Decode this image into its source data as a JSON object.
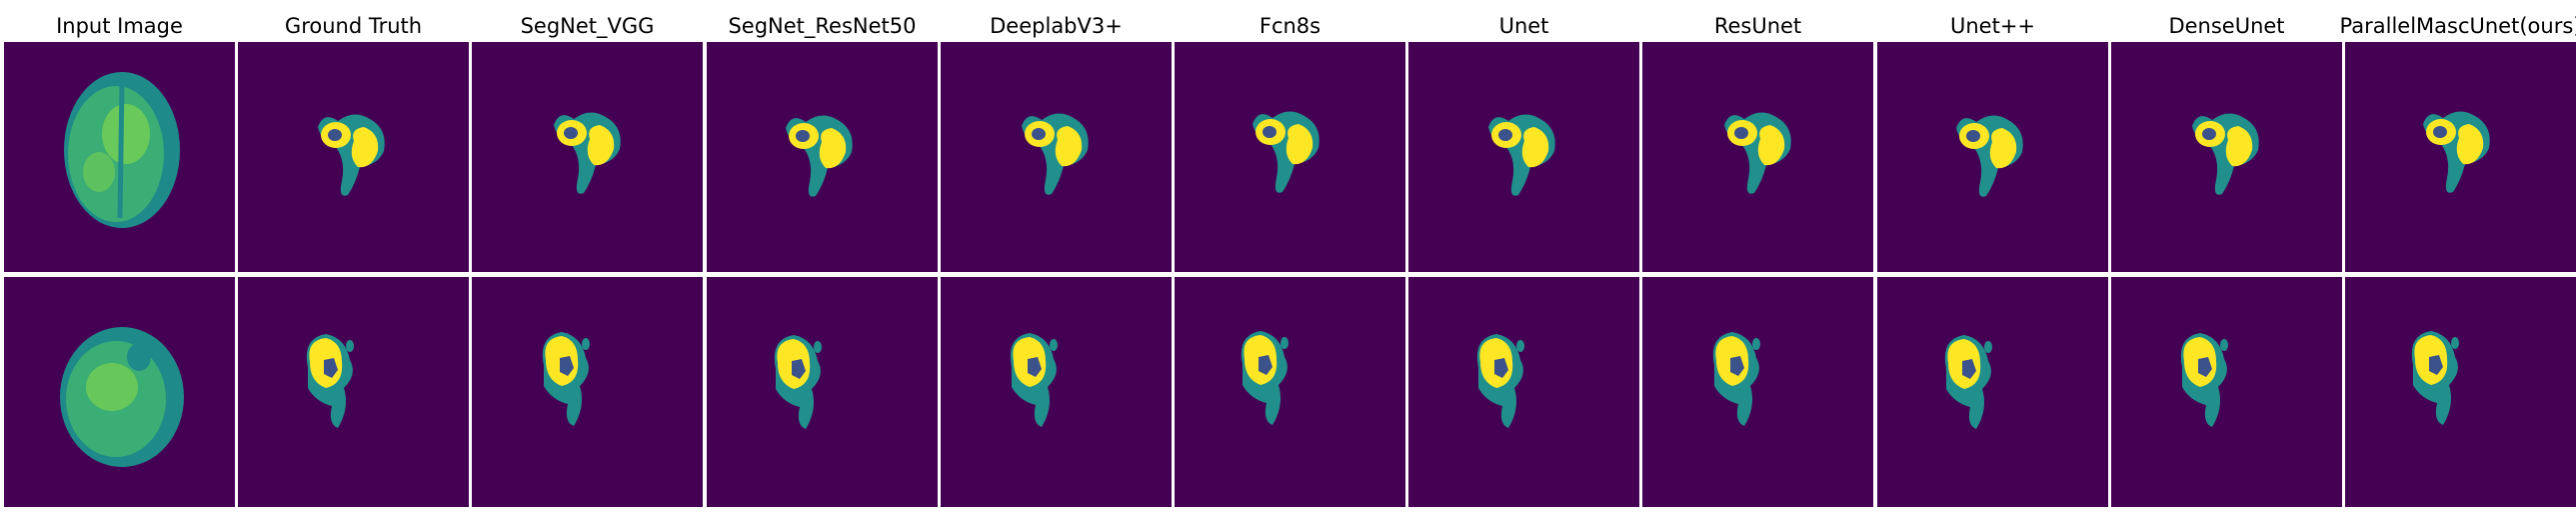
{
  "columns": [
    {
      "key": "input",
      "title": "Input Image"
    },
    {
      "key": "gt",
      "title": "Ground Truth"
    },
    {
      "key": "segnet_vgg",
      "title": "SegNet_VGG"
    },
    {
      "key": "segnet_resnet50",
      "title": "SegNet_ResNet50"
    },
    {
      "key": "deeplabv3p",
      "title": "DeeplabV3+"
    },
    {
      "key": "fcn8s",
      "title": "Fcn8s"
    },
    {
      "key": "unet",
      "title": "Unet"
    },
    {
      "key": "resunet",
      "title": "ResUnet"
    },
    {
      "key": "unetpp",
      "title": "Unet++"
    },
    {
      "key": "denseunet",
      "title": "DenseUnet"
    },
    {
      "key": "parallelmascunet",
      "title": "ParallelMascUnet(ours)"
    }
  ],
  "rows": [
    "sample-1",
    "sample-2"
  ],
  "colors": {
    "background": "#440154",
    "edema": "#21908d",
    "tumor_core": "#fde725",
    "necrosis": "#3b528b",
    "brain_dark": "#1f8a8a",
    "brain_mid": "#3aae74",
    "brain_light": "#7ad151"
  }
}
